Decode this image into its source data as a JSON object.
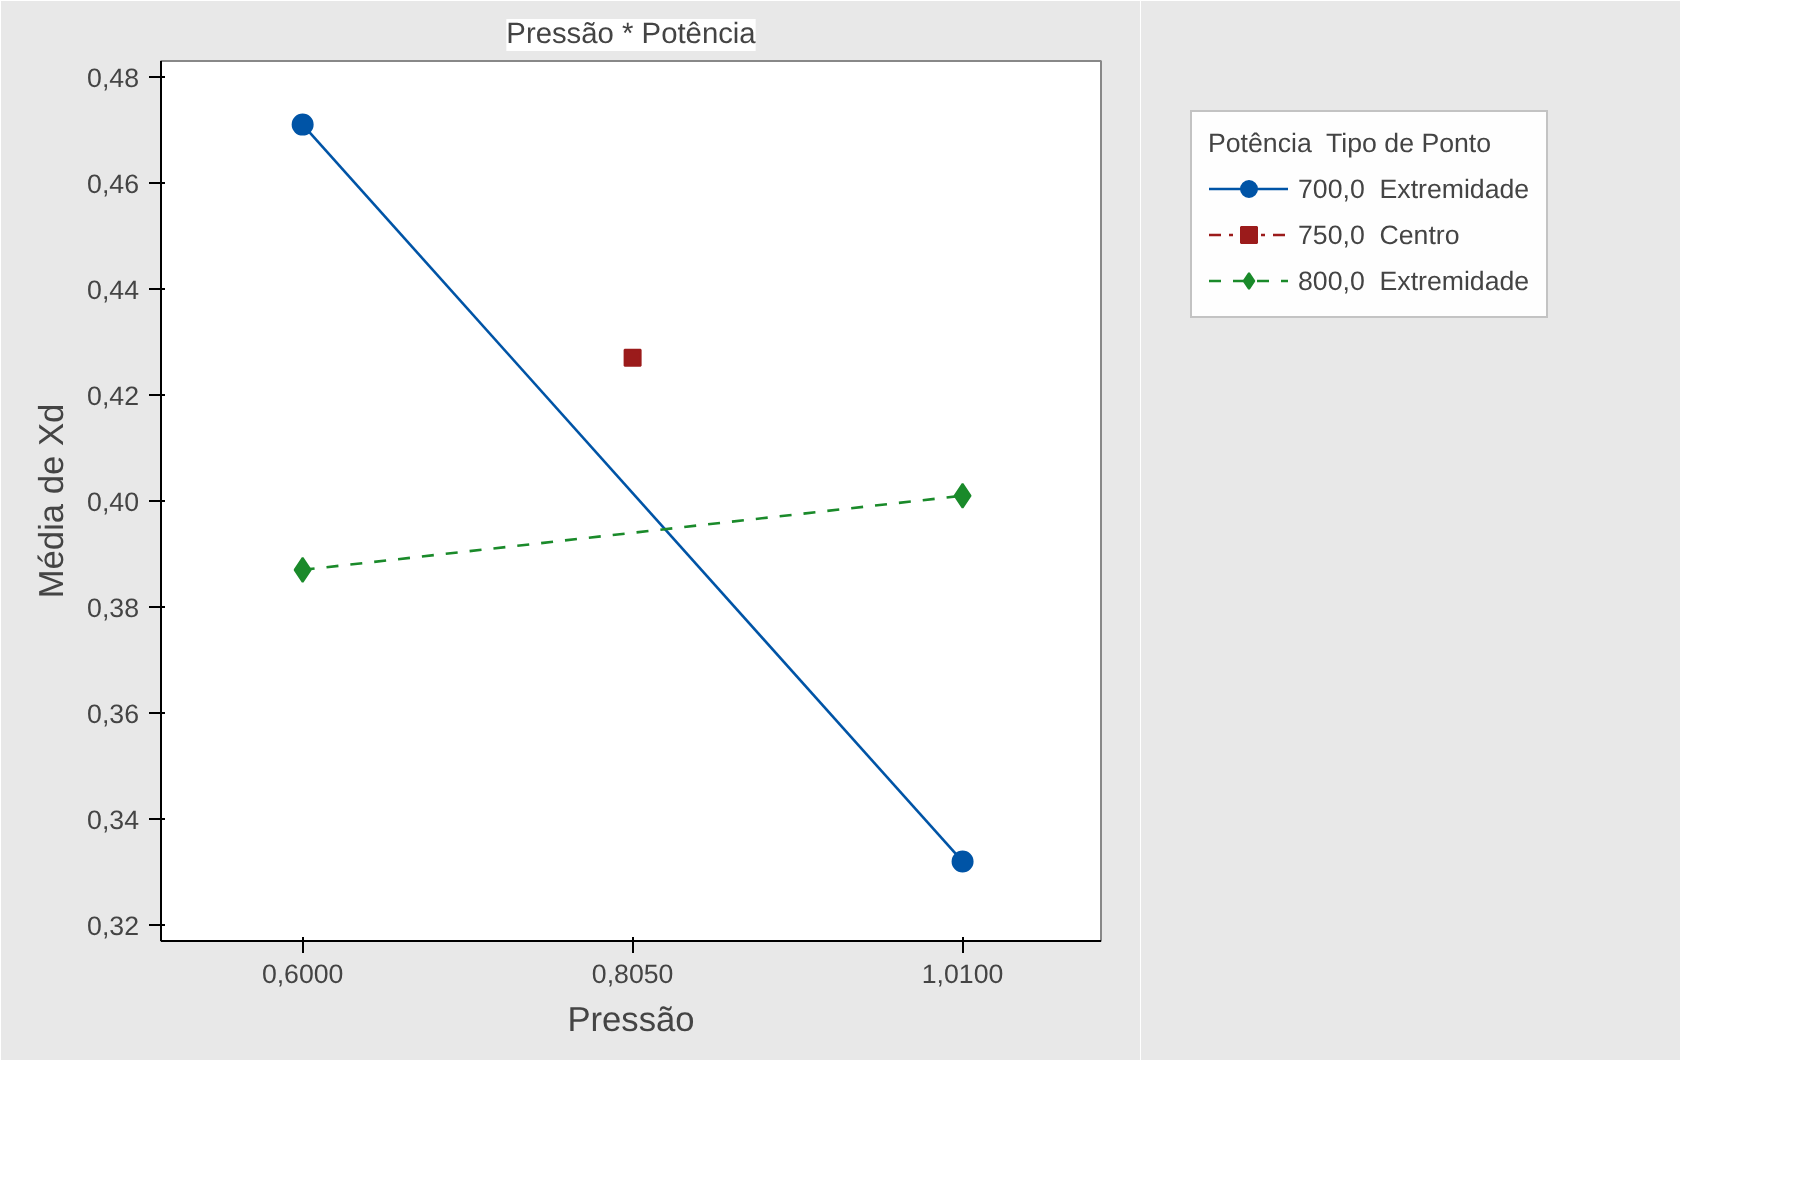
{
  "chart_data": {
    "type": "line",
    "title": "Pressão * Potência",
    "xlabel": "Pressão",
    "ylabel": "Média de Xd",
    "legend_title": "Potência  Tipo de Ponto",
    "xlim": [
      0.512,
      1.096
    ],
    "xticks": [
      {
        "value": 0.6,
        "label": "0,6000"
      },
      {
        "value": 0.805,
        "label": "0,8050"
      },
      {
        "value": 1.01,
        "label": "1,0100"
      }
    ],
    "ylim": [
      0.317,
      0.483
    ],
    "yticks": [
      {
        "value": 0.32,
        "label": "0,32"
      },
      {
        "value": 0.34,
        "label": "0,34"
      },
      {
        "value": 0.36,
        "label": "0,36"
      },
      {
        "value": 0.38,
        "label": "0,38"
      },
      {
        "value": 0.4,
        "label": "0,40"
      },
      {
        "value": 0.42,
        "label": "0,42"
      },
      {
        "value": 0.44,
        "label": "0,44"
      },
      {
        "value": 0.46,
        "label": "0,46"
      },
      {
        "value": 0.48,
        "label": "0,48"
      }
    ],
    "grid": false,
    "legend": "right",
    "series": [
      {
        "name": "700,0  Extremidade",
        "color": "#0054a6",
        "x": [
          0.6,
          1.01
        ],
        "values": [
          0.471,
          0.332
        ],
        "marker": "circle",
        "line_style": "solid"
      },
      {
        "name": "750,0  Centro",
        "color": "#9b1b1b",
        "x": [
          0.805
        ],
        "values": [
          0.427
        ],
        "marker": "square",
        "line_style": "dashdot"
      },
      {
        "name": "800,0  Extremidade",
        "color": "#1a8a2a",
        "x": [
          0.6,
          1.01
        ],
        "values": [
          0.387,
          0.401
        ],
        "marker": "diamond",
        "line_style": "dashed"
      }
    ]
  }
}
